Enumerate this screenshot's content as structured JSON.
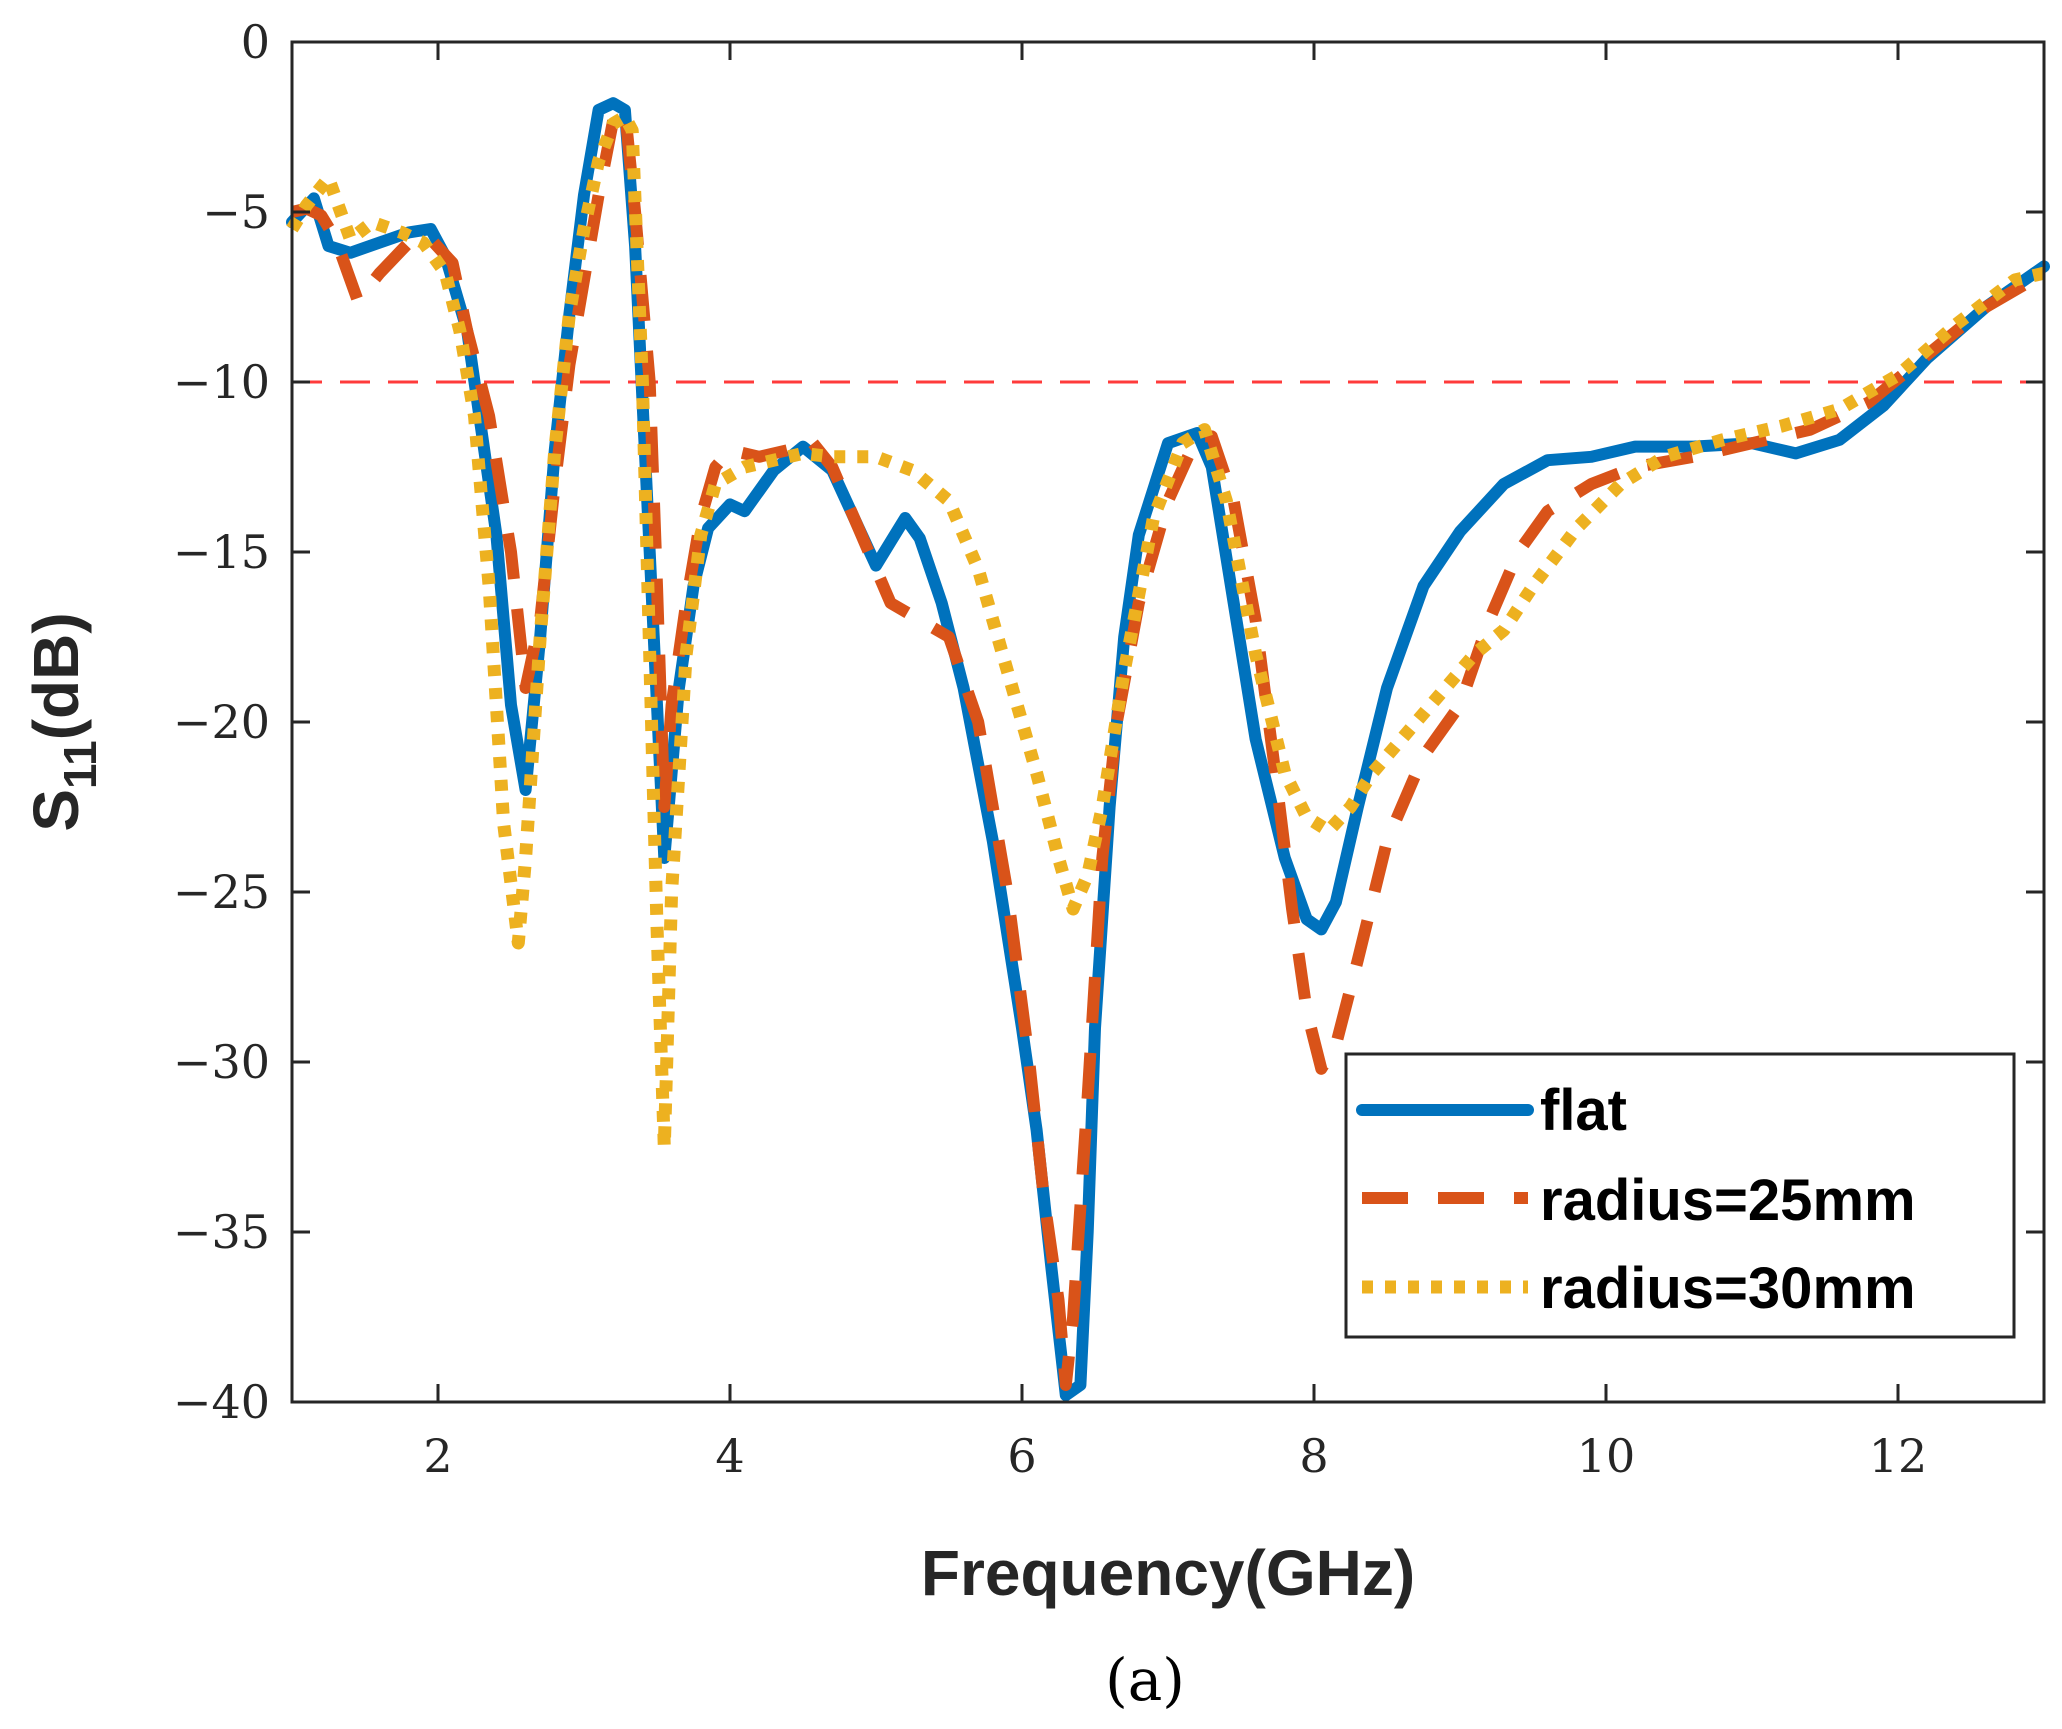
{
  "chart_data": {
    "type": "line",
    "title": "",
    "caption": "(a)",
    "xlabel": "Frequency(GHz)",
    "ylabel": {
      "base": "S",
      "sub": "11",
      "suffix": "(dB)"
    },
    "xlim": [
      1,
      13
    ],
    "ylim": [
      -40,
      0
    ],
    "xticks": [
      2,
      4,
      6,
      8,
      10,
      12
    ],
    "yticks": [
      0,
      -5,
      -10,
      -15,
      -20,
      -25,
      -30,
      -35,
      -40
    ],
    "ytick_labels": [
      "0",
      "−5",
      "−10",
      "−15",
      "−20",
      "−25",
      "−30",
      "−35",
      "−40"
    ],
    "grid": false,
    "reference_line": {
      "y": -10,
      "color": "#ff3b3b",
      "style": "dashed"
    },
    "legend_position": "lower-right",
    "colors": {
      "flat": "#0072bd",
      "r25": "#d95319",
      "r30": "#edb120"
    },
    "series": [
      {
        "name": "flat",
        "style": "solid",
        "x": [
          1.0,
          1.15,
          1.25,
          1.4,
          1.6,
          1.8,
          1.95,
          2.05,
          2.2,
          2.3,
          2.4,
          2.5,
          2.6,
          2.7,
          2.8,
          2.9,
          3.0,
          3.1,
          3.2,
          3.28,
          3.35,
          3.45,
          3.55,
          3.65,
          3.75,
          3.85,
          4.0,
          4.1,
          4.3,
          4.5,
          4.7,
          4.85,
          5.0,
          5.1,
          5.2,
          5.3,
          5.45,
          5.6,
          5.8,
          6.0,
          6.1,
          6.2,
          6.3,
          6.4,
          6.45,
          6.5,
          6.6,
          6.7,
          6.8,
          7.0,
          7.2,
          7.3,
          7.45,
          7.6,
          7.8,
          7.95,
          8.05,
          8.15,
          8.3,
          8.5,
          8.75,
          9.0,
          9.3,
          9.6,
          9.9,
          10.2,
          10.6,
          11.0,
          11.3,
          11.6,
          11.9,
          12.2,
          12.6,
          13.0
        ],
        "y": [
          -5.3,
          -4.6,
          -6.0,
          -6.2,
          -5.9,
          -5.6,
          -5.5,
          -6.3,
          -8.5,
          -11.5,
          -14.5,
          -19.5,
          -22.0,
          -17.5,
          -12.0,
          -8.0,
          -4.5,
          -2.0,
          -1.8,
          -2.0,
          -6.0,
          -15.0,
          -24.0,
          -19.0,
          -16.0,
          -14.3,
          -13.6,
          -13.8,
          -12.6,
          -11.9,
          -12.6,
          -14.0,
          -15.4,
          -14.7,
          -14.0,
          -14.6,
          -16.5,
          -19.0,
          -23.5,
          -29.0,
          -32.0,
          -36.0,
          -39.8,
          -39.5,
          -35.0,
          -29.0,
          -22.5,
          -17.5,
          -14.5,
          -11.8,
          -11.5,
          -12.5,
          -16.5,
          -20.5,
          -24.0,
          -25.8,
          -26.1,
          -25.3,
          -22.5,
          -19.0,
          -16.0,
          -14.4,
          -13.0,
          -12.3,
          -12.2,
          -11.9,
          -11.9,
          -11.8,
          -12.1,
          -11.7,
          -10.7,
          -9.3,
          -7.8,
          -6.6
        ]
      },
      {
        "name": "radius=25mm",
        "style": "dashed",
        "x": [
          1.0,
          1.1,
          1.2,
          1.3,
          1.45,
          1.6,
          1.8,
          1.95,
          2.1,
          2.2,
          2.35,
          2.5,
          2.6,
          2.7,
          2.8,
          2.9,
          3.0,
          3.1,
          3.2,
          3.28,
          3.35,
          3.45,
          3.5,
          3.55,
          3.6,
          3.7,
          3.8,
          3.9,
          4.0,
          4.2,
          4.4,
          4.55,
          4.7,
          4.9,
          5.1,
          5.3,
          5.5,
          5.7,
          5.9,
          6.05,
          6.15,
          6.25,
          6.3,
          6.35,
          6.45,
          6.55,
          6.65,
          6.8,
          7.0,
          7.2,
          7.3,
          7.45,
          7.6,
          7.75,
          7.85,
          7.95,
          8.05,
          8.15,
          8.3,
          8.5,
          8.75,
          9.0,
          9.2,
          9.4,
          9.6,
          9.9,
          10.2,
          10.6,
          11.0,
          11.4,
          11.8,
          12.2,
          12.6,
          13.0
        ],
        "y": [
          -5.0,
          -4.9,
          -5.1,
          -5.8,
          -7.6,
          -6.8,
          -5.9,
          -5.8,
          -6.5,
          -8.5,
          -11.0,
          -15.0,
          -19.0,
          -17.0,
          -13.0,
          -9.5,
          -7.0,
          -4.5,
          -2.3,
          -2.0,
          -5.0,
          -10.0,
          -16.0,
          -22.5,
          -19.5,
          -16.5,
          -14.0,
          -12.5,
          -12.0,
          -12.2,
          -12.0,
          -11.7,
          -12.5,
          -14.5,
          -16.5,
          -17.0,
          -17.5,
          -20.0,
          -25.0,
          -30.0,
          -34.0,
          -37.0,
          -39.5,
          -37.5,
          -31.0,
          -24.0,
          -20.0,
          -16.5,
          -13.5,
          -11.6,
          -11.6,
          -13.5,
          -17.0,
          -22.0,
          -25.5,
          -28.5,
          -30.2,
          -29.5,
          -27.0,
          -23.5,
          -21.0,
          -19.5,
          -17.0,
          -15.0,
          -13.8,
          -13.0,
          -12.5,
          -12.2,
          -11.8,
          -11.4,
          -10.6,
          -9.2,
          -7.8,
          -6.8
        ]
      },
      {
        "name": "radius=30mm",
        "style": "dotted",
        "x": [
          1.0,
          1.1,
          1.25,
          1.4,
          1.55,
          1.75,
          1.9,
          2.05,
          2.15,
          2.25,
          2.35,
          2.45,
          2.55,
          2.6,
          2.7,
          2.8,
          2.9,
          3.0,
          3.1,
          3.2,
          3.28,
          3.33,
          3.4,
          3.5,
          3.55,
          3.6,
          3.7,
          3.8,
          3.9,
          4.1,
          4.3,
          4.5,
          4.7,
          5.0,
          5.25,
          5.5,
          5.7,
          5.9,
          6.1,
          6.25,
          6.35,
          6.45,
          6.55,
          6.7,
          6.9,
          7.1,
          7.25,
          7.4,
          7.6,
          7.8,
          7.95,
          8.1,
          8.25,
          8.4,
          8.6,
          8.9,
          9.1,
          9.3,
          9.5,
          9.8,
          10.1,
          10.4,
          10.8,
          11.2,
          11.6,
          12.0,
          12.4,
          12.8,
          13.0
        ],
        "y": [
          -5.5,
          -4.8,
          -4.0,
          -5.8,
          -5.3,
          -5.6,
          -5.9,
          -6.8,
          -8.5,
          -11.0,
          -16.0,
          -23.0,
          -26.5,
          -24.0,
          -17.5,
          -12.0,
          -8.0,
          -5.5,
          -3.5,
          -2.4,
          -2.2,
          -2.6,
          -10.0,
          -26.0,
          -32.5,
          -25.0,
          -18.0,
          -14.5,
          -13.0,
          -12.5,
          -12.3,
          -12.1,
          -12.2,
          -12.2,
          -12.6,
          -13.5,
          -15.5,
          -18.5,
          -21.5,
          -24.0,
          -25.5,
          -24.5,
          -22.5,
          -18.5,
          -14.0,
          -11.8,
          -11.4,
          -13.5,
          -18.0,
          -21.5,
          -22.8,
          -23.2,
          -22.5,
          -21.5,
          -20.5,
          -19.0,
          -18.0,
          -17.3,
          -16.0,
          -14.3,
          -13.0,
          -12.2,
          -11.7,
          -11.3,
          -10.8,
          -9.8,
          -8.3,
          -7.0,
          -6.8
        ]
      }
    ]
  }
}
